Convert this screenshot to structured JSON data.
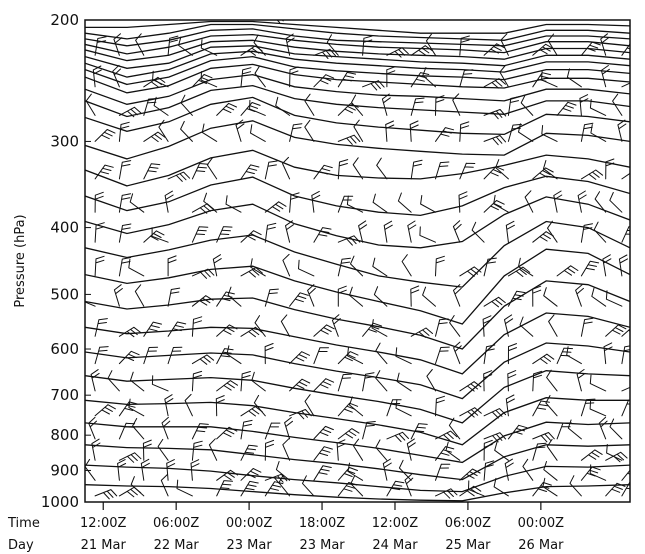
{
  "chart_data": {
    "type": "time-height cross section",
    "title": "",
    "ylabel": "Pressure (hPa)",
    "y_scale": "log",
    "ylim": [
      1000,
      200
    ],
    "y_ticks": [
      200,
      300,
      400,
      500,
      600,
      700,
      800,
      900,
      1000
    ],
    "x_row_labels": {
      "time": "Time",
      "day": "Day"
    },
    "x_ticks": [
      {
        "time": "12:00Z",
        "day": "21 Mar"
      },
      {
        "time": "06:00Z",
        "day": "22 Mar"
      },
      {
        "time": "00:00Z",
        "day": "23 Mar"
      },
      {
        "time": "18:00Z",
        "day": "23 Mar"
      },
      {
        "time": "12:00Z",
        "day": "24 Mar"
      },
      {
        "time": "06:00Z",
        "day": "25 Mar"
      },
      {
        "time": "00:00Z",
        "day": "26 Mar"
      }
    ],
    "x_hours_from_first_tick": {
      "start": -4.5,
      "end": 130,
      "tick_step": 18
    },
    "contours_hpa": [
      [
        205,
        205,
        203,
        201,
        201,
        203,
        205,
        207,
        209,
        209,
        209,
        203,
        203,
        204
      ],
      [
        209,
        213,
        209,
        203,
        203,
        206,
        209,
        211,
        212,
        213,
        214,
        207,
        207,
        209
      ],
      [
        213,
        218,
        214,
        207,
        206,
        211,
        214,
        215,
        216,
        217,
        218,
        211,
        211,
        213
      ],
      [
        217,
        224,
        219,
        211,
        210,
        214,
        217,
        219,
        220,
        221,
        223,
        215,
        215,
        218
      ],
      [
        221,
        229,
        225,
        215,
        214,
        219,
        222,
        224,
        225,
        226,
        228,
        220,
        220,
        223
      ],
      [
        226,
        235,
        231,
        219,
        218,
        224,
        226,
        228,
        230,
        231,
        233,
        225,
        225,
        228
      ],
      [
        231,
        242,
        236,
        224,
        222,
        228,
        231,
        233,
        235,
        236,
        238,
        230,
        230,
        233
      ],
      [
        236,
        248,
        242,
        229,
        226,
        234,
        237,
        239,
        241,
        242,
        244,
        236,
        236,
        239
      ],
      [
        242,
        255,
        249,
        235,
        232,
        240,
        244,
        246,
        248,
        250,
        251,
        243,
        243,
        246
      ],
      [
        252,
        265,
        258,
        244,
        240,
        250,
        254,
        257,
        258,
        260,
        262,
        252,
        252,
        256
      ],
      [
        262,
        276,
        268,
        253,
        249,
        260,
        265,
        268,
        270,
        272,
        274,
        262,
        262,
        267
      ],
      [
        277,
        290,
        281,
        265,
        259,
        275,
        282,
        286,
        289,
        292,
        293,
        274,
        276,
        281
      ],
      [
        304,
        318,
        305,
        287,
        280,
        296,
        303,
        307,
        310,
        313,
        314,
        292,
        294,
        300
      ],
      [
        330,
        348,
        336,
        317,
        309,
        327,
        336,
        339,
        340,
        334,
        325,
        314,
        318,
        327
      ],
      [
        360,
        378,
        367,
        347,
        338,
        360,
        372,
        380,
        384,
        372,
        350,
        337,
        343,
        357
      ],
      [
        392,
        408,
        396,
        378,
        370,
        395,
        411,
        424,
        428,
        419,
        383,
        361,
        370,
        390
      ],
      [
        428,
        442,
        431,
        417,
        410,
        434,
        452,
        470,
        480,
        488,
        425,
        392,
        400,
        428
      ],
      [
        468,
        482,
        473,
        460,
        455,
        478,
        496,
        512,
        528,
        552,
        470,
        430,
        436,
        468
      ],
      [
        512,
        525,
        518,
        508,
        506,
        526,
        543,
        557,
        573,
        600,
        520,
        478,
        484,
        512
      ],
      [
        558,
        570,
        565,
        558,
        560,
        576,
        592,
        606,
        622,
        652,
        572,
        532,
        538,
        558
      ],
      [
        606,
        618,
        613,
        608,
        612,
        630,
        646,
        660,
        676,
        708,
        627,
        588,
        594,
        606
      ],
      [
        656,
        668,
        664,
        660,
        666,
        684,
        700,
        715,
        734,
        768,
        682,
        645,
        652,
        656
      ],
      [
        712,
        722,
        720,
        717,
        725,
        742,
        757,
        773,
        792,
        826,
        742,
        706,
        712,
        712
      ],
      [
        768,
        778,
        778,
        778,
        790,
        806,
        820,
        836,
        856,
        876,
        802,
        766,
        772,
        768
      ],
      [
        826,
        834,
        836,
        840,
        854,
        868,
        880,
        895,
        913,
        928,
        860,
        826,
        830,
        826
      ],
      [
        884,
        890,
        894,
        902,
        916,
        928,
        938,
        950,
        962,
        966,
        918,
        888,
        890,
        884
      ],
      [
        944,
        948,
        950,
        956,
        966,
        976,
        984,
        990,
        994,
        996,
        970,
        950,
        948,
        944
      ]
    ],
    "wind_barbs": {
      "x_hours": [
        -2,
        4,
        10,
        16,
        22,
        28,
        34,
        40,
        46,
        52,
        58,
        64,
        70,
        76,
        82,
        88,
        94,
        100,
        106,
        112,
        118,
        124,
        128
      ],
      "levels_hpa": [
        200,
        225,
        250,
        275,
        300,
        340,
        380,
        420,
        470,
        520,
        575,
        630,
        690,
        750,
        810,
        870,
        930,
        980
      ],
      "speed_kt": 25
    }
  }
}
